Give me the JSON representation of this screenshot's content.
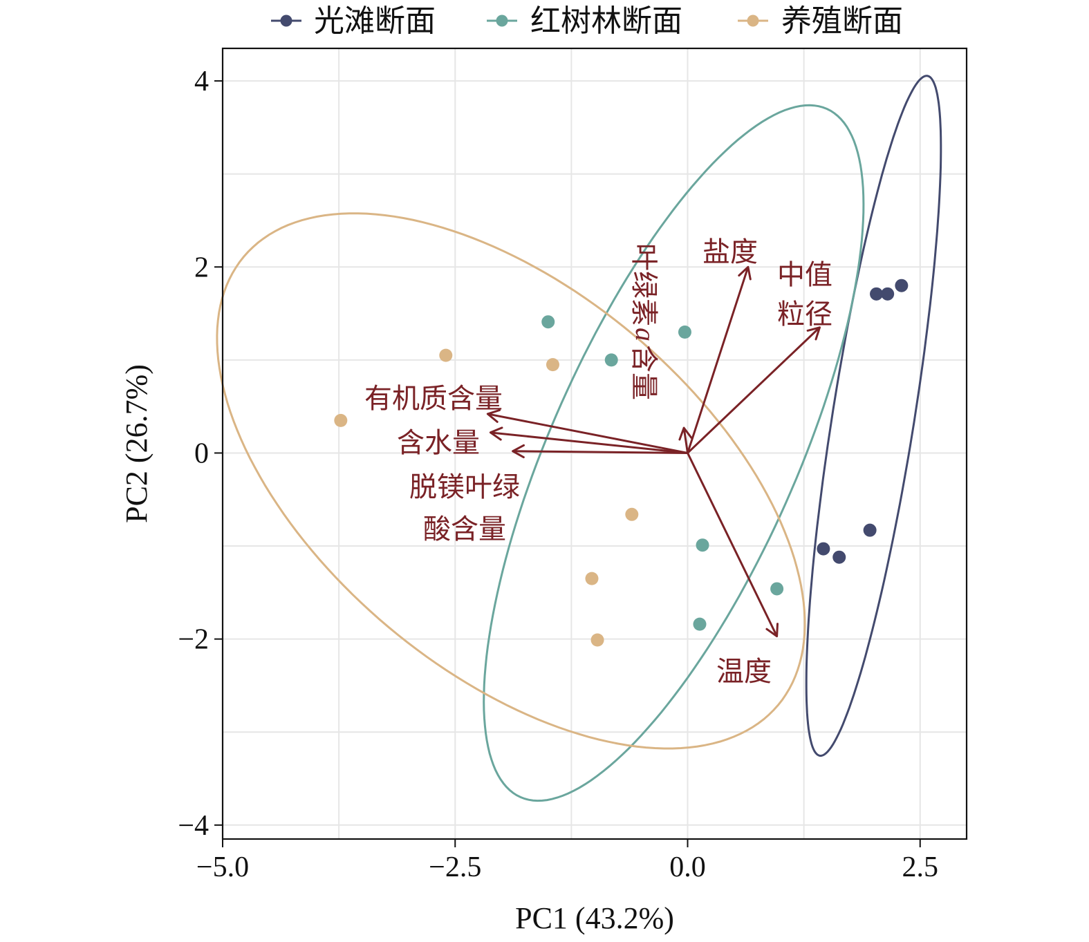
{
  "chart_data": {
    "type": "scatter",
    "xlabel": "PC1 (43.2%)",
    "ylabel": "PC2 (26.7%)",
    "xlim": [
      -5.0,
      3.0
    ],
    "ylim": [
      -4.15,
      4.35
    ],
    "xticks": [
      -5.0,
      -2.5,
      0.0,
      2.5
    ],
    "xtick_labels": [
      "−5.0",
      "−2.5",
      "0.0",
      "2.5"
    ],
    "yticks": [
      -4,
      -2,
      0,
      2,
      4
    ],
    "ytick_labels": [
      "−4",
      "−2",
      "0",
      "2",
      "4"
    ],
    "grid": true,
    "legend_position": "top",
    "series": [
      {
        "name": "光滩断面",
        "color": "#434a6e",
        "points": [
          [
            2.03,
            1.71
          ],
          [
            2.15,
            1.71
          ],
          [
            2.3,
            1.8
          ],
          [
            1.96,
            -0.83
          ],
          [
            1.46,
            -1.03
          ],
          [
            1.63,
            -1.12
          ]
        ],
        "ellipse": {
          "center": [
            2.0,
            0.4
          ],
          "half_major": 3.7,
          "half_minor": 0.44,
          "angle_deg": 81
        }
      },
      {
        "name": "红树林断面",
        "color": "#6aa69d",
        "points": [
          [
            -1.5,
            1.41
          ],
          [
            -0.82,
            1.0
          ],
          [
            -0.03,
            1.3
          ],
          [
            0.16,
            -0.99
          ],
          [
            0.96,
            -1.46
          ],
          [
            0.13,
            -1.84
          ]
        ],
        "ellipse": {
          "center": [
            -0.15,
            0.0
          ],
          "half_major": 4.05,
          "half_minor": 1.32,
          "angle_deg": 66
        }
      },
      {
        "name": "养殖断面",
        "color": "#dab585",
        "points": [
          [
            -2.6,
            1.05
          ],
          [
            -1.45,
            0.95
          ],
          [
            -3.73,
            0.35
          ],
          [
            -0.6,
            -0.66
          ],
          [
            -1.03,
            -1.35
          ],
          [
            -0.97,
            -2.01
          ]
        ],
        "ellipse": {
          "center": [
            -1.9,
            -0.3
          ],
          "half_major": 3.75,
          "half_minor": 2.05,
          "angle_deg": -40
        }
      }
    ],
    "loadings": {
      "color": "#7a2226",
      "vectors": [
        {
          "label": [
            "盐度"
          ],
          "x": 0.65,
          "y": 2.0
        },
        {
          "label": [
            "中值",
            "粒径"
          ],
          "x": 1.42,
          "y": 1.35
        },
        {
          "label": [
            "叶绿素",
            "a",
            "含量"
          ],
          "x": -0.04,
          "y": 0.27
        },
        {
          "label": [
            "有机质含量"
          ],
          "x": -2.15,
          "y": 0.42
        },
        {
          "label": [
            "含水量"
          ],
          "x": -2.12,
          "y": 0.22
        },
        {
          "label": [
            "脱镁叶绿",
            "酸含量"
          ],
          "x": -1.88,
          "y": 0.02
        },
        {
          "label": [
            "温度"
          ],
          "x": 0.96,
          "y": -1.97
        }
      ]
    }
  }
}
